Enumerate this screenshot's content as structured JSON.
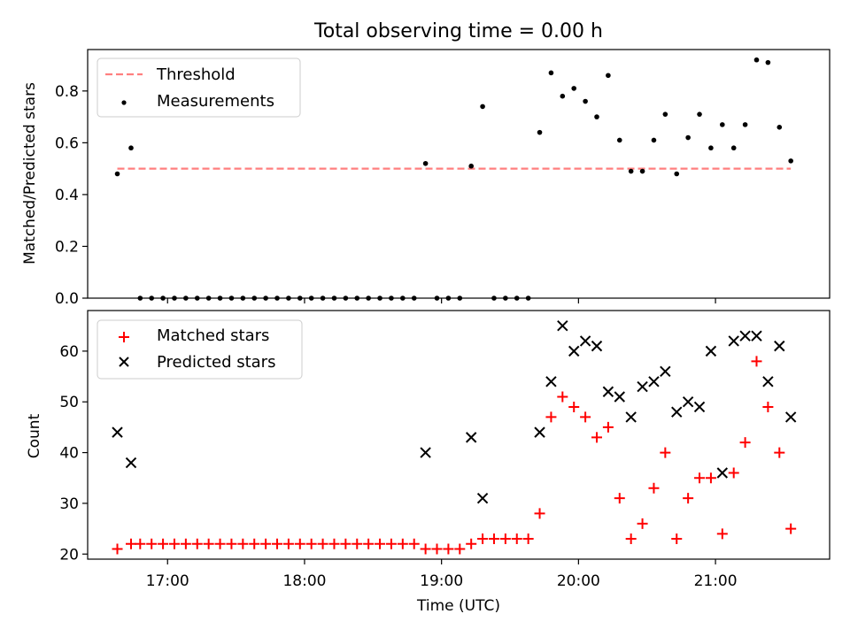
{
  "chart_data": [
    {
      "type": "scatter",
      "title": "Total observing time = 0.00 h",
      "xlabel": "",
      "ylabel": "Matched/Predicted stars",
      "xlim": [
        "16:25",
        "21:50"
      ],
      "ylim": [
        0,
        0.96
      ],
      "y_ticks": [
        "0.0",
        "0.2",
        "0.4",
        "0.6",
        "0.8"
      ],
      "x_tick_labels_visible": false,
      "grid": false,
      "legend": "top-left",
      "series": [
        {
          "name": "Threshold",
          "style": "dashed-line",
          "color": "#ff7f7f",
          "points": [
            [
              "16:38",
              0.5
            ],
            [
              "21:33",
              0.5
            ]
          ]
        },
        {
          "name": "Measurements",
          "style": "dot",
          "color": "#000000",
          "points": [
            [
              "16:38",
              0.48
            ],
            [
              "16:44",
              0.58
            ],
            [
              "16:48",
              0.0
            ],
            [
              "16:53",
              0.0
            ],
            [
              "16:58",
              0.0
            ],
            [
              "17:03",
              0.0
            ],
            [
              "17:08",
              0.0
            ],
            [
              "17:13",
              0.0
            ],
            [
              "17:18",
              0.0
            ],
            [
              "17:23",
              0.0
            ],
            [
              "17:28",
              0.0
            ],
            [
              "17:33",
              0.0
            ],
            [
              "17:38",
              0.0
            ],
            [
              "17:43",
              0.0
            ],
            [
              "17:48",
              0.0
            ],
            [
              "17:53",
              0.0
            ],
            [
              "17:58",
              0.0
            ],
            [
              "18:03",
              0.0
            ],
            [
              "18:08",
              0.0
            ],
            [
              "18:13",
              0.0
            ],
            [
              "18:18",
              0.0
            ],
            [
              "18:23",
              0.0
            ],
            [
              "18:28",
              0.0
            ],
            [
              "18:33",
              0.0
            ],
            [
              "18:38",
              0.0
            ],
            [
              "18:43",
              0.0
            ],
            [
              "18:48",
              0.0
            ],
            [
              "18:53",
              0.52
            ],
            [
              "18:58",
              0.0
            ],
            [
              "19:03",
              0.0
            ],
            [
              "19:08",
              0.0
            ],
            [
              "19:13",
              0.51
            ],
            [
              "19:18",
              0.74
            ],
            [
              "19:23",
              0.0
            ],
            [
              "19:28",
              0.0
            ],
            [
              "19:33",
              0.0
            ],
            [
              "19:38",
              0.0
            ],
            [
              "19:43",
              0.64
            ],
            [
              "19:48",
              0.87
            ],
            [
              "19:53",
              0.78
            ],
            [
              "19:58",
              0.81
            ],
            [
              "20:03",
              0.76
            ],
            [
              "20:08",
              0.7
            ],
            [
              "20:13",
              0.86
            ],
            [
              "20:18",
              0.61
            ],
            [
              "20:23",
              0.49
            ],
            [
              "20:28",
              0.49
            ],
            [
              "20:33",
              0.61
            ],
            [
              "20:38",
              0.71
            ],
            [
              "20:43",
              0.48
            ],
            [
              "20:48",
              0.62
            ],
            [
              "20:53",
              0.71
            ],
            [
              "20:58",
              0.58
            ],
            [
              "21:03",
              0.67
            ],
            [
              "21:08",
              0.58
            ],
            [
              "21:13",
              0.67
            ],
            [
              "21:18",
              0.92
            ],
            [
              "21:23",
              0.91
            ],
            [
              "21:28",
              0.66
            ],
            [
              "21:33",
              0.53
            ]
          ]
        }
      ]
    },
    {
      "type": "scatter",
      "title": "",
      "xlabel": "Time (UTC)",
      "ylabel": "Count",
      "xlim": [
        "16:25",
        "21:50"
      ],
      "ylim": [
        19,
        68
      ],
      "x_ticks": [
        "17:00",
        "18:00",
        "19:00",
        "20:00",
        "21:00"
      ],
      "y_ticks": [
        "20",
        "30",
        "40",
        "50",
        "60"
      ],
      "grid": false,
      "legend": "top-left",
      "series": [
        {
          "name": "Matched stars",
          "style": "plus",
          "color": "#ff0000",
          "points": [
            [
              "16:38",
              21
            ],
            [
              "16:44",
              22
            ],
            [
              "16:48",
              22
            ],
            [
              "16:53",
              22
            ],
            [
              "16:58",
              22
            ],
            [
              "17:03",
              22
            ],
            [
              "17:08",
              22
            ],
            [
              "17:13",
              22
            ],
            [
              "17:18",
              22
            ],
            [
              "17:23",
              22
            ],
            [
              "17:28",
              22
            ],
            [
              "17:33",
              22
            ],
            [
              "17:38",
              22
            ],
            [
              "17:43",
              22
            ],
            [
              "17:48",
              22
            ],
            [
              "17:53",
              22
            ],
            [
              "17:58",
              22
            ],
            [
              "18:03",
              22
            ],
            [
              "18:08",
              22
            ],
            [
              "18:13",
              22
            ],
            [
              "18:18",
              22
            ],
            [
              "18:23",
              22
            ],
            [
              "18:28",
              22
            ],
            [
              "18:33",
              22
            ],
            [
              "18:38",
              22
            ],
            [
              "18:43",
              22
            ],
            [
              "18:48",
              22
            ],
            [
              "18:53",
              21
            ],
            [
              "18:58",
              21
            ],
            [
              "19:03",
              21
            ],
            [
              "19:08",
              21
            ],
            [
              "19:13",
              22
            ],
            [
              "19:18",
              23
            ],
            [
              "19:23",
              23
            ],
            [
              "19:28",
              23
            ],
            [
              "19:33",
              23
            ],
            [
              "19:38",
              23
            ],
            [
              "19:43",
              28
            ],
            [
              "19:48",
              47
            ],
            [
              "19:53",
              51
            ],
            [
              "19:58",
              49
            ],
            [
              "20:03",
              47
            ],
            [
              "20:08",
              43
            ],
            [
              "20:13",
              45
            ],
            [
              "20:18",
              31
            ],
            [
              "20:23",
              23
            ],
            [
              "20:28",
              26
            ],
            [
              "20:33",
              33
            ],
            [
              "20:38",
              40
            ],
            [
              "20:43",
              23
            ],
            [
              "20:48",
              31
            ],
            [
              "20:53",
              35
            ],
            [
              "20:58",
              35
            ],
            [
              "21:03",
              24
            ],
            [
              "21:08",
              36
            ],
            [
              "21:13",
              42
            ],
            [
              "21:18",
              58
            ],
            [
              "21:23",
              49
            ],
            [
              "21:28",
              40
            ],
            [
              "21:33",
              25
            ]
          ]
        },
        {
          "name": "Predicted stars",
          "style": "x",
          "color": "#000000",
          "points": [
            [
              "16:38",
              44
            ],
            [
              "16:44",
              38
            ],
            [
              "18:53",
              40
            ],
            [
              "19:13",
              43
            ],
            [
              "19:18",
              31
            ],
            [
              "19:43",
              44
            ],
            [
              "19:48",
              54
            ],
            [
              "19:53",
              65
            ],
            [
              "19:58",
              60
            ],
            [
              "20:03",
              62
            ],
            [
              "20:08",
              61
            ],
            [
              "20:13",
              52
            ],
            [
              "20:18",
              51
            ],
            [
              "20:23",
              47
            ],
            [
              "20:28",
              53
            ],
            [
              "20:33",
              54
            ],
            [
              "20:38",
              56
            ],
            [
              "20:43",
              48
            ],
            [
              "20:48",
              50
            ],
            [
              "20:53",
              49
            ],
            [
              "20:58",
              60
            ],
            [
              "21:03",
              36
            ],
            [
              "21:08",
              62
            ],
            [
              "21:13",
              63
            ],
            [
              "21:18",
              63
            ],
            [
              "21:23",
              54
            ],
            [
              "21:28",
              61
            ],
            [
              "21:33",
              47
            ]
          ]
        }
      ]
    }
  ]
}
